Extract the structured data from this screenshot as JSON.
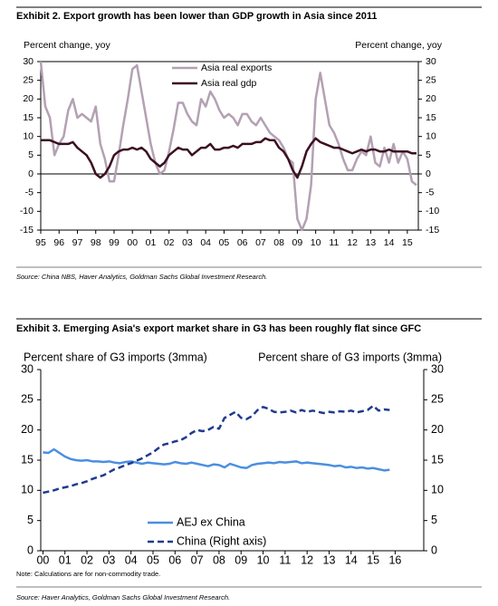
{
  "chart_data": [
    {
      "type": "line",
      "title": "Exhibit 2.  Export growth has been lower than GDP growth in Asia since 2011",
      "ylabel": "Percent change, yoy",
      "y2label": "Percent change, yoy",
      "source": "Source: China NBS, Haver Analytics, Goldman Sachs Global Investment Research.",
      "x": [
        1995,
        1995.25,
        1995.5,
        1995.75,
        1996,
        1996.25,
        1996.5,
        1996.75,
        1997,
        1997.25,
        1997.5,
        1997.75,
        1998,
        1998.25,
        1998.5,
        1998.75,
        1999,
        1999.25,
        1999.5,
        1999.75,
        2000,
        2000.25,
        2000.5,
        2000.75,
        2001,
        2001.25,
        2001.5,
        2001.75,
        2002,
        2002.25,
        2002.5,
        2002.75,
        2003,
        2003.25,
        2003.5,
        2003.75,
        2004,
        2004.25,
        2004.5,
        2004.75,
        2005,
        2005.25,
        2005.5,
        2005.75,
        2006,
        2006.25,
        2006.5,
        2006.75,
        2007,
        2007.25,
        2007.5,
        2007.75,
        2008,
        2008.25,
        2008.5,
        2008.75,
        2009,
        2009.25,
        2009.5,
        2009.75,
        2010,
        2010.25,
        2010.5,
        2010.75,
        2011,
        2011.25,
        2011.5,
        2011.75,
        2012,
        2012.25,
        2012.5,
        2012.75,
        2013,
        2013.25,
        2013.5,
        2013.75,
        2014,
        2014.25,
        2014.5,
        2014.75,
        2015,
        2015.25,
        2015.5
      ],
      "series": [
        {
          "name": "Asia real exports",
          "color": "#b3a1b3",
          "width": 2.5,
          "values": [
            30,
            18,
            15,
            5,
            8,
            10,
            17,
            20,
            15,
            16,
            15,
            14,
            18,
            8,
            4,
            -2,
            -2,
            5,
            13,
            20,
            28,
            29,
            22,
            15,
            8,
            3,
            0,
            1,
            6,
            12,
            19,
            19,
            16,
            14,
            13,
            20,
            18,
            22,
            20,
            17,
            15,
            16,
            15,
            13,
            16,
            16,
            14,
            13,
            15,
            13,
            11,
            10,
            9,
            7,
            4,
            3,
            -12,
            -15,
            -12,
            -3,
            20,
            27,
            20,
            13,
            11,
            8,
            4,
            1,
            1,
            4,
            6,
            5,
            10,
            3,
            2,
            7,
            3,
            8,
            3,
            6,
            4,
            -2,
            -3
          ]
        },
        {
          "name": "Asia real gdp",
          "color": "#3b1020",
          "width": 2.5,
          "values": [
            9,
            9,
            9,
            8.5,
            8,
            8,
            8,
            8.5,
            7,
            6,
            5,
            3,
            0,
            -1,
            0,
            2,
            5,
            6,
            6.5,
            6.5,
            7,
            6.5,
            7,
            6,
            4,
            3,
            2,
            3,
            5,
            6,
            7,
            6.5,
            6.5,
            5,
            6,
            7,
            7,
            8,
            6.5,
            6.5,
            7,
            7,
            7.5,
            7,
            8,
            8,
            8,
            8.5,
            8.5,
            9.5,
            9,
            9,
            7,
            6,
            4,
            1,
            -1,
            2,
            6,
            8,
            9.5,
            8.5,
            8,
            7.5,
            7,
            7,
            6.5,
            6,
            5.5,
            6,
            6.5,
            6,
            6.5,
            6.5,
            6,
            6,
            6.5,
            6,
            6,
            6,
            6,
            5.5,
            5.5
          ]
        }
      ],
      "xlim": [
        1995,
        2015.6
      ],
      "xticks": [
        {
          "value": 1995,
          "label": "95"
        },
        {
          "value": 1996,
          "label": "96"
        },
        {
          "value": 1997,
          "label": "97"
        },
        {
          "value": 1998,
          "label": "98"
        },
        {
          "value": 1999,
          "label": "99"
        },
        {
          "value": 2000,
          "label": "00"
        },
        {
          "value": 2001,
          "label": "01"
        },
        {
          "value": 2002,
          "label": "02"
        },
        {
          "value": 2003,
          "label": "03"
        },
        {
          "value": 2004,
          "label": "04"
        },
        {
          "value": 2005,
          "label": "05"
        },
        {
          "value": 2006,
          "label": "06"
        },
        {
          "value": 2007,
          "label": "07"
        },
        {
          "value": 2008,
          "label": "08"
        },
        {
          "value": 2009,
          "label": "09"
        },
        {
          "value": 2010,
          "label": "10"
        },
        {
          "value": 2011,
          "label": "11"
        },
        {
          "value": 2012,
          "label": "12"
        },
        {
          "value": 2013,
          "label": "13"
        },
        {
          "value": 2014,
          "label": "14"
        },
        {
          "value": 2015,
          "label": "15"
        }
      ],
      "ylim": [
        -15,
        30
      ],
      "yticks": [
        -15,
        -10,
        -5,
        0,
        5,
        10,
        15,
        20,
        25,
        30
      ],
      "y2lim": [
        -15,
        30
      ],
      "y2ticks": [
        -15,
        -10,
        -5,
        0,
        5,
        10,
        15,
        20,
        25,
        30
      ],
      "frame": true,
      "zero_line": true,
      "legend": "top"
    },
    {
      "type": "line",
      "title": "Exhibit 3.  Emerging Asia's export market share in G3 has been roughly flat  since GFC",
      "ylabel": "Percent share of G3 imports (3mma)",
      "y2label": "Percent share of G3 imports (3mma)",
      "note": "Note: Calculations are for non-commodity trade.",
      "source": "Source: Haver Analytics, Goldman Sachs Global Investment Research.",
      "x": [
        2000,
        2000.25,
        2000.5,
        2000.75,
        2001,
        2001.25,
        2001.5,
        2001.75,
        2002,
        2002.25,
        2002.5,
        2002.75,
        2003,
        2003.25,
        2003.5,
        2003.75,
        2004,
        2004.25,
        2004.5,
        2004.75,
        2005,
        2005.25,
        2005.5,
        2005.75,
        2006,
        2006.25,
        2006.5,
        2006.75,
        2007,
        2007.25,
        2007.5,
        2007.75,
        2008,
        2008.25,
        2008.5,
        2008.75,
        2009,
        2009.25,
        2009.5,
        2009.75,
        2010,
        2010.25,
        2010.5,
        2010.75,
        2011,
        2011.25,
        2011.5,
        2011.75,
        2012,
        2012.25,
        2012.5,
        2012.75,
        2013,
        2013.25,
        2013.5,
        2013.75,
        2014,
        2014.25,
        2014.5,
        2014.75,
        2015,
        2015.25,
        2015.5,
        2015.75
      ],
      "series": [
        {
          "name": "AEJ ex China",
          "color": "#4a8fe0",
          "width": 2.5,
          "values": [
            16.3,
            16.2,
            16.8,
            16.2,
            15.6,
            15.2,
            15.0,
            14.9,
            15.0,
            14.8,
            14.8,
            14.7,
            14.8,
            14.6,
            14.5,
            14.7,
            14.8,
            14.6,
            14.4,
            14.6,
            14.5,
            14.4,
            14.3,
            14.4,
            14.7,
            14.5,
            14.4,
            14.6,
            14.4,
            14.2,
            14.0,
            14.3,
            14.2,
            13.8,
            14.4,
            14.1,
            13.8,
            13.7,
            14.2,
            14.4,
            14.5,
            14.6,
            14.5,
            14.7,
            14.6,
            14.7,
            14.8,
            14.5,
            14.6,
            14.5,
            14.4,
            14.3,
            14.2,
            14.0,
            14.1,
            13.8,
            13.9,
            13.7,
            13.8,
            13.6,
            13.7,
            13.5,
            13.3,
            13.4
          ]
        },
        {
          "name": "China (Right axis)",
          "color": "#1f3a8f",
          "width": 2.5,
          "line_style": "dashed",
          "axis": "y2",
          "values": [
            9.6,
            9.8,
            10.0,
            10.3,
            10.5,
            10.7,
            11.0,
            11.2,
            11.5,
            11.9,
            12.2,
            12.5,
            13.0,
            13.5,
            13.8,
            14.2,
            14.5,
            14.9,
            15.3,
            15.8,
            16.3,
            17.0,
            17.6,
            17.8,
            18.1,
            18.3,
            18.8,
            19.5,
            20.0,
            19.8,
            20.0,
            20.5,
            20.2,
            22.0,
            22.5,
            23.0,
            22.0,
            21.8,
            22.3,
            23.3,
            23.8,
            23.5,
            23.0,
            22.9,
            23.0,
            23.2,
            22.9,
            23.3,
            23.0,
            23.2,
            23.0,
            22.8,
            23.0,
            22.9,
            23.1,
            23.0,
            23.2,
            22.9,
            23.1,
            23.3,
            24.0,
            23.2,
            23.4,
            23.3
          ]
        }
      ],
      "xlim": [
        1999.9,
        2017.3
      ],
      "xticks": [
        {
          "value": 2000,
          "label": "00"
        },
        {
          "value": 2001,
          "label": "01"
        },
        {
          "value": 2002,
          "label": "02"
        },
        {
          "value": 2003,
          "label": "03"
        },
        {
          "value": 2004,
          "label": "04"
        },
        {
          "value": 2005,
          "label": "05"
        },
        {
          "value": 2006,
          "label": "06"
        },
        {
          "value": 2007,
          "label": "07"
        },
        {
          "value": 2008,
          "label": "08"
        },
        {
          "value": 2009,
          "label": "09"
        },
        {
          "value": 2010,
          "label": "10"
        },
        {
          "value": 2011,
          "label": "11"
        },
        {
          "value": 2012,
          "label": "12"
        },
        {
          "value": 2013,
          "label": "13"
        },
        {
          "value": 2014,
          "label": "14"
        },
        {
          "value": 2015,
          "label": "15"
        },
        {
          "value": 2016,
          "label": "16"
        }
      ],
      "ylim": [
        0,
        30
      ],
      "yticks": [
        0,
        5,
        10,
        15,
        20,
        25,
        30
      ],
      "y2lim": [
        0,
        30
      ],
      "y2ticks": [
        0,
        5,
        10,
        15,
        20,
        25,
        30
      ],
      "frame": false,
      "zero_line": false,
      "legend": "bottom"
    }
  ]
}
